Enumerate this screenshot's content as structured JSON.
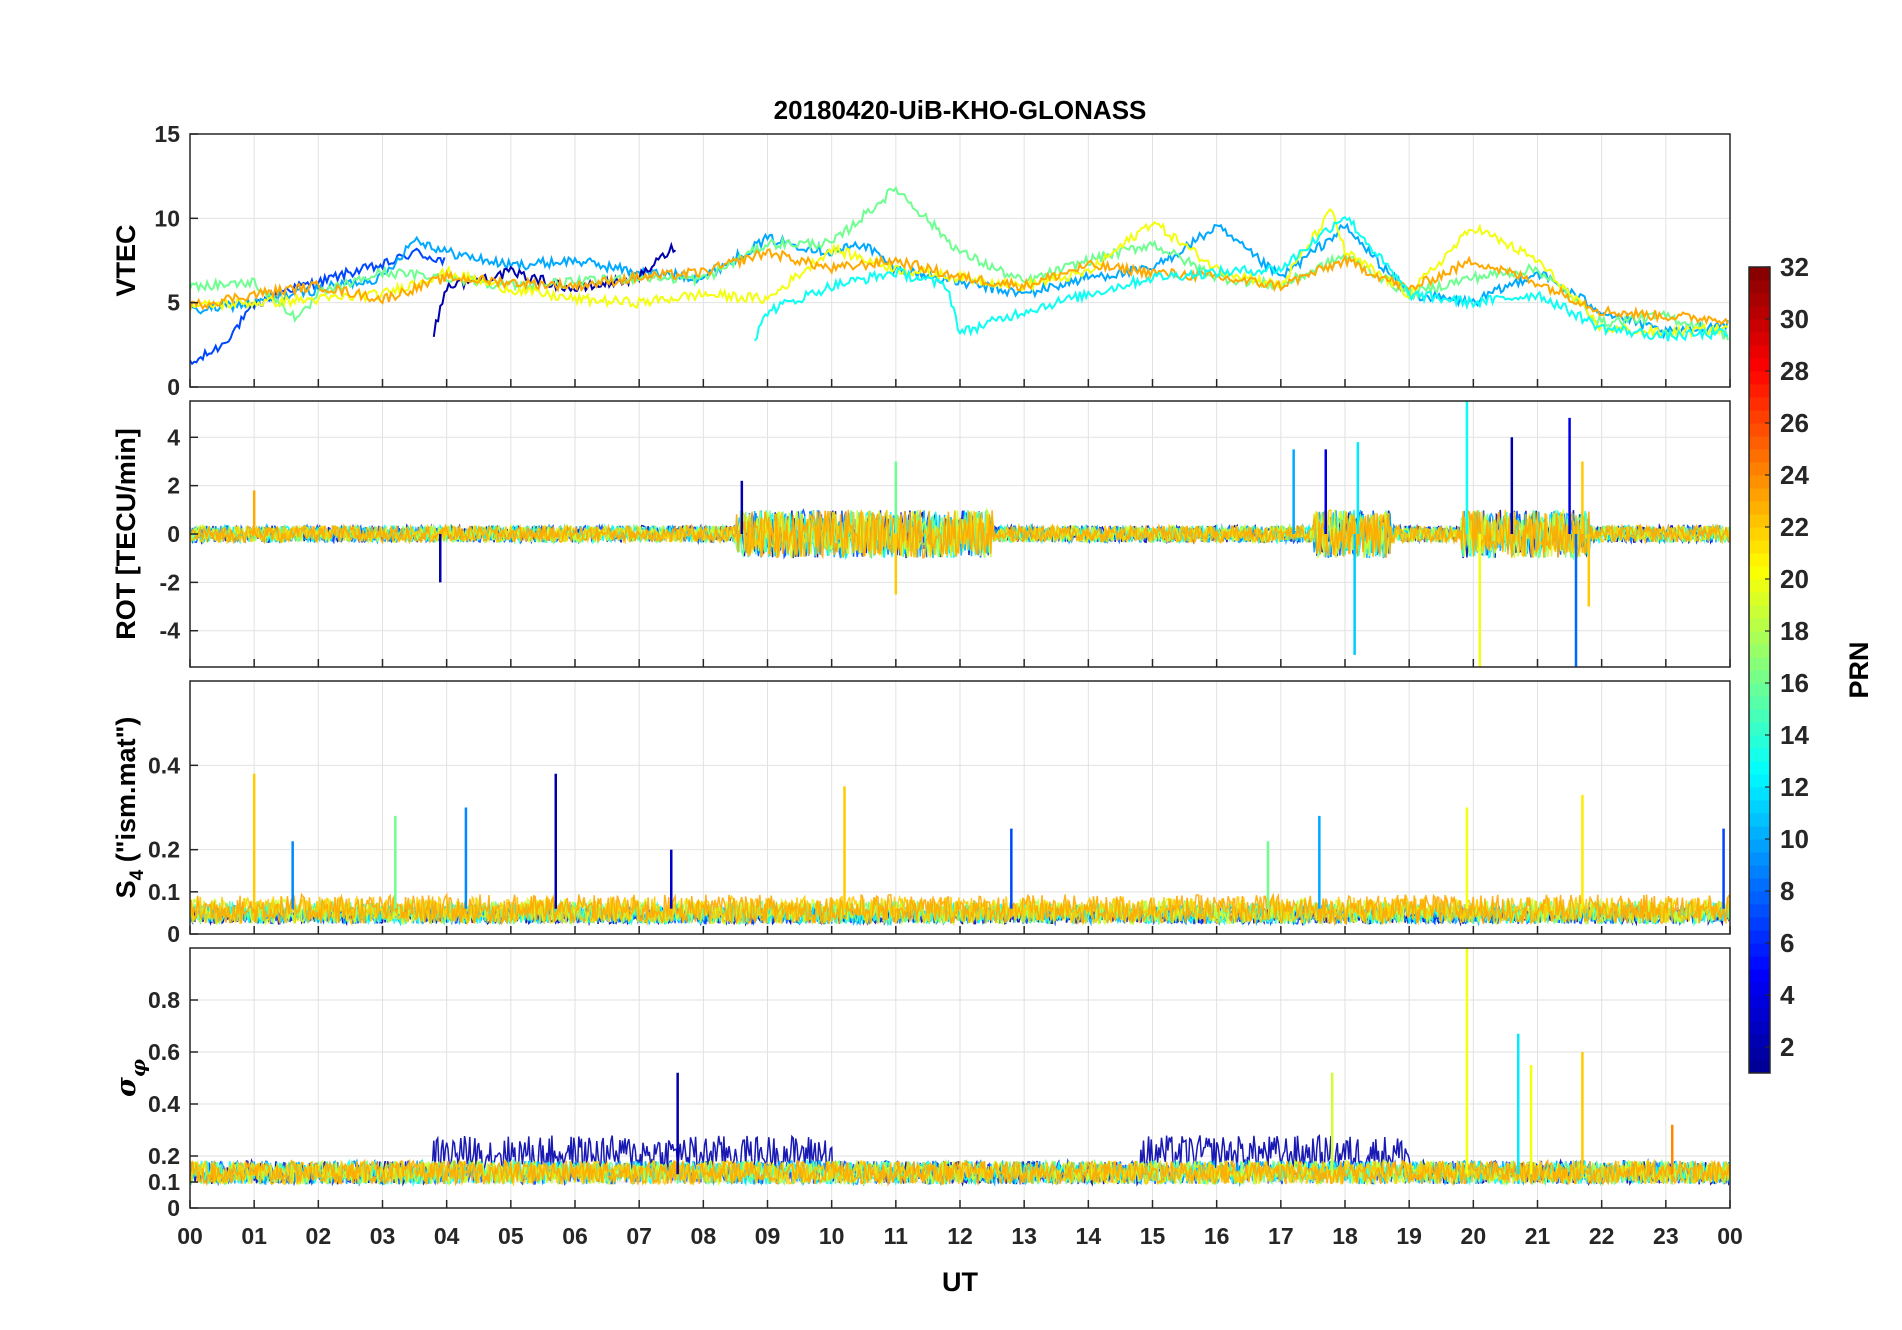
{
  "colors": {
    "background": "#ffffff",
    "axis": "#262626",
    "grid": "#e2e2e2",
    "colormap": [
      "#00008f",
      "#0000ff",
      "#0080ff",
      "#00ffff",
      "#80ff80",
      "#ffff00",
      "#ff8000",
      "#ff0000",
      "#800000"
    ]
  },
  "chart_data": {
    "title": "20180420-UiB-KHO-GLONASS",
    "type": "line",
    "xlabel": "UT",
    "x_ticks": [
      "00",
      "01",
      "02",
      "03",
      "04",
      "05",
      "06",
      "07",
      "08",
      "09",
      "10",
      "11",
      "12",
      "13",
      "14",
      "15",
      "16",
      "17",
      "18",
      "19",
      "20",
      "21",
      "22",
      "23",
      "00"
    ],
    "xlim": [
      0,
      24
    ],
    "panels": [
      {
        "name": "vtec",
        "ylabel": "VTEC",
        "ylim": [
          0,
          15
        ],
        "yticks": [
          "0",
          "5",
          "10",
          "15"
        ],
        "ytick_values": [
          0,
          5,
          10,
          15
        ],
        "series": [
          {
            "prn": 7,
            "x": [
              0,
              0.5,
              1,
              1.5,
              2,
              2.5,
              3,
              3.5,
              4
            ],
            "values": [
              1.3,
              2.5,
              4.8,
              5.8,
              6.2,
              6.8,
              7.2,
              8.0,
              7.4
            ]
          },
          {
            "prn": 10,
            "x": [
              0,
              1,
              2,
              3,
              3.5,
              4,
              5,
              6,
              7,
              8,
              9,
              10,
              10.5,
              11,
              12,
              13,
              14,
              15,
              16,
              17,
              18,
              19,
              20,
              21,
              22,
              23,
              24
            ],
            "values": [
              4.5,
              5.0,
              5.8,
              6.5,
              8.8,
              8.0,
              7.2,
              7.5,
              6.8,
              6.5,
              8.8,
              8.0,
              8.5,
              7.0,
              6.2,
              5.5,
              6.5,
              7.0,
              9.5,
              6.5,
              9.5,
              5.5,
              5.0,
              6.8,
              4.5,
              3.2,
              3.8
            ]
          },
          {
            "prn": 2,
            "x": [
              3.8,
              4,
              5,
              6,
              7,
              7.6
            ],
            "values": [
              3.2,
              6.0,
              6.8,
              5.8,
              6.5,
              8.5
            ]
          },
          {
            "prn": 16,
            "x": [
              0,
              1,
              1.7,
              2,
              3,
              4,
              5,
              6,
              7,
              8,
              9,
              10,
              11,
              12,
              13,
              14,
              15,
              16,
              17,
              18,
              19,
              20,
              21,
              22,
              23,
              24
            ],
            "values": [
              6.0,
              6.2,
              4.0,
              5.5,
              6.8,
              6.5,
              6.0,
              6.2,
              6.5,
              6.4,
              8.5,
              8.5,
              11.8,
              8.0,
              6.2,
              7.5,
              8.5,
              6.5,
              6.0,
              7.8,
              5.5,
              6.5,
              7.0,
              3.8,
              4.2,
              3.0
            ]
          },
          {
            "prn": 20,
            "x": [
              0,
              1,
              2,
              3,
              4,
              5,
              6,
              7,
              8,
              9,
              10,
              11,
              12,
              13,
              14,
              15,
              16,
              17,
              17.8,
              18,
              19,
              20,
              21,
              22,
              23,
              24
            ],
            "values": [
              4.8,
              5.0,
              5.2,
              5.5,
              6.8,
              5.8,
              5.2,
              5.0,
              5.5,
              5.2,
              8.2,
              7.0,
              6.5,
              6.0,
              6.8,
              9.8,
              7.0,
              6.0,
              10.5,
              8.0,
              5.5,
              9.5,
              7.5,
              3.5,
              3.2,
              3.5
            ]
          },
          {
            "prn": 23,
            "x": [
              0,
              1,
              2,
              3,
              4,
              5,
              6,
              7,
              8,
              9,
              10,
              11,
              12,
              13,
              14,
              15,
              16,
              17,
              18,
              19,
              20,
              21,
              22,
              23,
              24
            ],
            "values": [
              4.8,
              5.5,
              6.0,
              5.2,
              6.5,
              6.2,
              6.0,
              6.5,
              6.8,
              8.0,
              7.0,
              7.5,
              6.5,
              6.0,
              7.2,
              6.8,
              6.5,
              6.0,
              7.5,
              5.8,
              7.5,
              6.2,
              4.5,
              4.2,
              4.0
            ]
          },
          {
            "prn": 13,
            "x": [
              8.8,
              9,
              10,
              11,
              11.8,
              12,
              13,
              14,
              15,
              16,
              17,
              18,
              19,
              20,
              21,
              22,
              23,
              24
            ],
            "values": [
              2.8,
              4.5,
              6.0,
              6.8,
              6.0,
              3.2,
              4.5,
              5.5,
              6.5,
              6.8,
              7.0,
              10.2,
              5.5,
              5.0,
              5.5,
              3.5,
              3.0,
              3.2
            ]
          }
        ]
      },
      {
        "name": "rot",
        "ylabel": "ROT [TECU/min]",
        "ylim": [
          -5.5,
          5.5
        ],
        "yticks": [
          "-4",
          "-2",
          "0",
          "2",
          "4"
        ],
        "ytick_values": [
          -4,
          -2,
          0,
          2,
          4
        ],
        "noise_baseline": 0.35,
        "activity_windows_UT": [
          [
            8.5,
            12.5
          ],
          [
            17.5,
            18.7
          ],
          [
            19.8,
            21.8
          ]
        ],
        "spikes": [
          {
            "x": 1.0,
            "value": 1.8,
            "prn": 23
          },
          {
            "x": 3.9,
            "value": -2.0,
            "prn": 2
          },
          {
            "x": 8.6,
            "value": 2.2,
            "prn": 2
          },
          {
            "x": 11.0,
            "value": 3.0,
            "prn": 16
          },
          {
            "x": 11.0,
            "value": -2.5,
            "prn": 22
          },
          {
            "x": 17.2,
            "value": 3.5,
            "prn": 10
          },
          {
            "x": 17.7,
            "value": 3.5,
            "prn": 4
          },
          {
            "x": 18.15,
            "value": -5.0,
            "prn": 11
          },
          {
            "x": 18.2,
            "value": 3.8,
            "prn": 12
          },
          {
            "x": 19.9,
            "value": 5.5,
            "prn": 13
          },
          {
            "x": 20.1,
            "value": -5.5,
            "prn": 20
          },
          {
            "x": 20.6,
            "value": 4.0,
            "prn": 2
          },
          {
            "x": 21.5,
            "value": 4.8,
            "prn": 4
          },
          {
            "x": 21.6,
            "value": -5.5,
            "prn": 8
          },
          {
            "x": 21.7,
            "value": 3.0,
            "prn": 22
          },
          {
            "x": 21.8,
            "value": -3.0,
            "prn": 22
          }
        ]
      },
      {
        "name": "s4",
        "ylabel": "S4 (\"ism.mat\")",
        "ylabel_main": "S",
        "ylabel_sub": "4",
        "ylabel_tail": " (\"ism.mat\")",
        "ylim": [
          0,
          0.6
        ],
        "yticks": [
          "0",
          "0.1",
          "0.2",
          "0.4"
        ],
        "ytick_values": [
          0,
          0.1,
          0.2,
          0.4
        ],
        "noise_baseline": 0.06,
        "spikes": [
          {
            "x": 1.0,
            "value": 0.38,
            "prn": 22
          },
          {
            "x": 1.6,
            "value": 0.22,
            "prn": 9
          },
          {
            "x": 3.2,
            "value": 0.28,
            "prn": 16
          },
          {
            "x": 4.3,
            "value": 0.3,
            "prn": 9
          },
          {
            "x": 5.7,
            "value": 0.38,
            "prn": 2
          },
          {
            "x": 7.5,
            "value": 0.2,
            "prn": 3
          },
          {
            "x": 10.2,
            "value": 0.35,
            "prn": 22
          },
          {
            "x": 12.8,
            "value": 0.25,
            "prn": 7
          },
          {
            "x": 16.8,
            "value": 0.22,
            "prn": 16
          },
          {
            "x": 17.6,
            "value": 0.28,
            "prn": 10
          },
          {
            "x": 19.9,
            "value": 0.3,
            "prn": 20
          },
          {
            "x": 21.7,
            "value": 0.33,
            "prn": 21
          },
          {
            "x": 23.9,
            "value": 0.25,
            "prn": 7
          }
        ]
      },
      {
        "name": "sigma_phi",
        "ylabel": "σφ",
        "ylim": [
          0,
          1.0
        ],
        "yticks": [
          "0",
          "0.1",
          "0.2",
          "0.4",
          "0.6",
          "0.8"
        ],
        "ytick_values": [
          0,
          0.1,
          0.2,
          0.4,
          0.6,
          0.8
        ],
        "noise_baseline": 0.13,
        "elevated_windows_UT": [
          [
            3.8,
            10.0
          ],
          [
            14.8,
            19.0
          ]
        ],
        "spikes": [
          {
            "x": 7.6,
            "value": 0.52,
            "prn": 2
          },
          {
            "x": 17.8,
            "value": 0.52,
            "prn": 19
          },
          {
            "x": 19.9,
            "value": 1.0,
            "prn": 20
          },
          {
            "x": 20.7,
            "value": 0.67,
            "prn": 12
          },
          {
            "x": 20.9,
            "value": 0.55,
            "prn": 20
          },
          {
            "x": 21.7,
            "value": 0.6,
            "prn": 22
          },
          {
            "x": 23.1,
            "value": 0.32,
            "prn": 24
          }
        ]
      }
    ],
    "colorbar": {
      "label": "PRN",
      "range": [
        1,
        32
      ],
      "ticks": [
        "2",
        "4",
        "6",
        "8",
        "10",
        "12",
        "14",
        "16",
        "18",
        "20",
        "22",
        "24",
        "26",
        "28",
        "30",
        "32"
      ],
      "tick_values": [
        2,
        4,
        6,
        8,
        10,
        12,
        14,
        16,
        18,
        20,
        22,
        24,
        26,
        28,
        30,
        32
      ]
    }
  }
}
